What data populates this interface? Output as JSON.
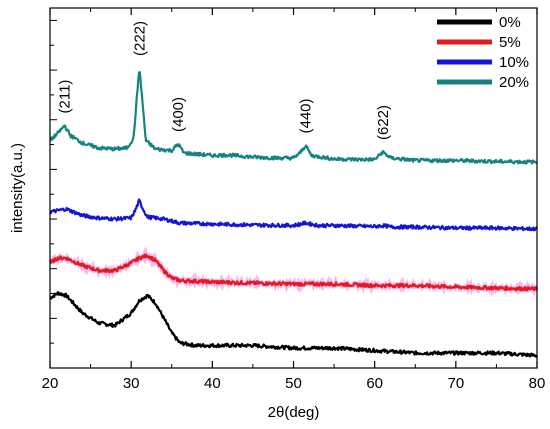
{
  "chart_data": {
    "type": "line",
    "title": "",
    "xlabel": "2θ(deg)",
    "ylabel": "intensity(a.u.)",
    "xlim": [
      20,
      80
    ],
    "x_ticks": [
      20,
      30,
      40,
      50,
      60,
      70,
      80
    ],
    "y_tick_labels_shown": false,
    "grid": false,
    "legend_position": "top-right",
    "series": [
      {
        "name": "0%",
        "color": "#000000",
        "points": [
          [
            20,
            1.4
          ],
          [
            21,
            1.5
          ],
          [
            22,
            1.45
          ],
          [
            24,
            1.1
          ],
          [
            26,
            0.9
          ],
          [
            28,
            0.85
          ],
          [
            30,
            1.1
          ],
          [
            31,
            1.35
          ],
          [
            32,
            1.45
          ],
          [
            33,
            1.3
          ],
          [
            34,
            1.0
          ],
          [
            35,
            0.7
          ],
          [
            36,
            0.5
          ],
          [
            38,
            0.45
          ],
          [
            40,
            0.45
          ],
          [
            45,
            0.45
          ],
          [
            50,
            0.4
          ],
          [
            55,
            0.4
          ],
          [
            60,
            0.35
          ],
          [
            65,
            0.3
          ],
          [
            70,
            0.3
          ],
          [
            75,
            0.3
          ],
          [
            80,
            0.25
          ]
        ]
      },
      {
        "name": "5%",
        "color": "#e41a1c",
        "points": [
          [
            20,
            2.1
          ],
          [
            21,
            2.2
          ],
          [
            22,
            2.2
          ],
          [
            24,
            2.05
          ],
          [
            26,
            1.95
          ],
          [
            28,
            1.95
          ],
          [
            30,
            2.1
          ],
          [
            31,
            2.2
          ],
          [
            32,
            2.25
          ],
          [
            33,
            2.15
          ],
          [
            34,
            1.95
          ],
          [
            35,
            1.8
          ],
          [
            36,
            1.75
          ],
          [
            40,
            1.72
          ],
          [
            45,
            1.7
          ],
          [
            50,
            1.68
          ],
          [
            55,
            1.68
          ],
          [
            60,
            1.65
          ],
          [
            65,
            1.65
          ],
          [
            70,
            1.62
          ],
          [
            75,
            1.6
          ],
          [
            80,
            1.58
          ]
        ]
      },
      {
        "name": "10%",
        "color": "#1515d6",
        "points": [
          [
            20,
            3.12
          ],
          [
            21,
            3.15
          ],
          [
            22,
            3.18
          ],
          [
            24,
            3.05
          ],
          [
            26,
            3.0
          ],
          [
            28,
            2.98
          ],
          [
            30,
            3.0
          ],
          [
            30.5,
            3.15
          ],
          [
            31,
            3.35
          ],
          [
            31.4,
            3.2
          ],
          [
            32,
            3.02
          ],
          [
            34,
            2.98
          ],
          [
            36,
            2.9
          ],
          [
            40,
            2.88
          ],
          [
            45,
            2.86
          ],
          [
            50,
            2.85
          ],
          [
            51.5,
            2.9
          ],
          [
            53,
            2.85
          ],
          [
            55,
            2.85
          ],
          [
            60,
            2.83
          ],
          [
            61,
            2.85
          ],
          [
            62,
            2.82
          ],
          [
            65,
            2.82
          ],
          [
            70,
            2.8
          ],
          [
            75,
            2.8
          ],
          [
            80,
            2.78
          ]
        ]
      },
      {
        "name": "20%",
        "color": "#158480",
        "points": [
          [
            20,
            4.55
          ],
          [
            21,
            4.7
          ],
          [
            21.8,
            4.85
          ],
          [
            22.5,
            4.65
          ],
          [
            24,
            4.5
          ],
          [
            26,
            4.4
          ],
          [
            28,
            4.38
          ],
          [
            29.5,
            4.4
          ],
          [
            30.3,
            4.6
          ],
          [
            30.8,
            5.6
          ],
          [
            31.0,
            6.0
          ],
          [
            31.3,
            5.5
          ],
          [
            31.8,
            4.55
          ],
          [
            33,
            4.38
          ],
          [
            35,
            4.35
          ],
          [
            35.8,
            4.48
          ],
          [
            36.5,
            4.3
          ],
          [
            40,
            4.25
          ],
          [
            42,
            4.26
          ],
          [
            45,
            4.22
          ],
          [
            48,
            4.2
          ],
          [
            50,
            4.2
          ],
          [
            50.8,
            4.3
          ],
          [
            51.5,
            4.45
          ],
          [
            52.2,
            4.25
          ],
          [
            55,
            4.18
          ],
          [
            58,
            4.17
          ],
          [
            60,
            4.17
          ],
          [
            61,
            4.32
          ],
          [
            62,
            4.2
          ],
          [
            65,
            4.15
          ],
          [
            70,
            4.15
          ],
          [
            75,
            4.13
          ],
          [
            80,
            4.12
          ]
        ]
      }
    ],
    "annotations": [
      {
        "text": "(211)",
        "x": 21.8
      },
      {
        "text": "(222)",
        "x": 31.0
      },
      {
        "text": "(400)",
        "x": 35.8
      },
      {
        "text": "(440)",
        "x": 51.5
      },
      {
        "text": "(622)",
        "x": 61.0
      }
    ]
  }
}
